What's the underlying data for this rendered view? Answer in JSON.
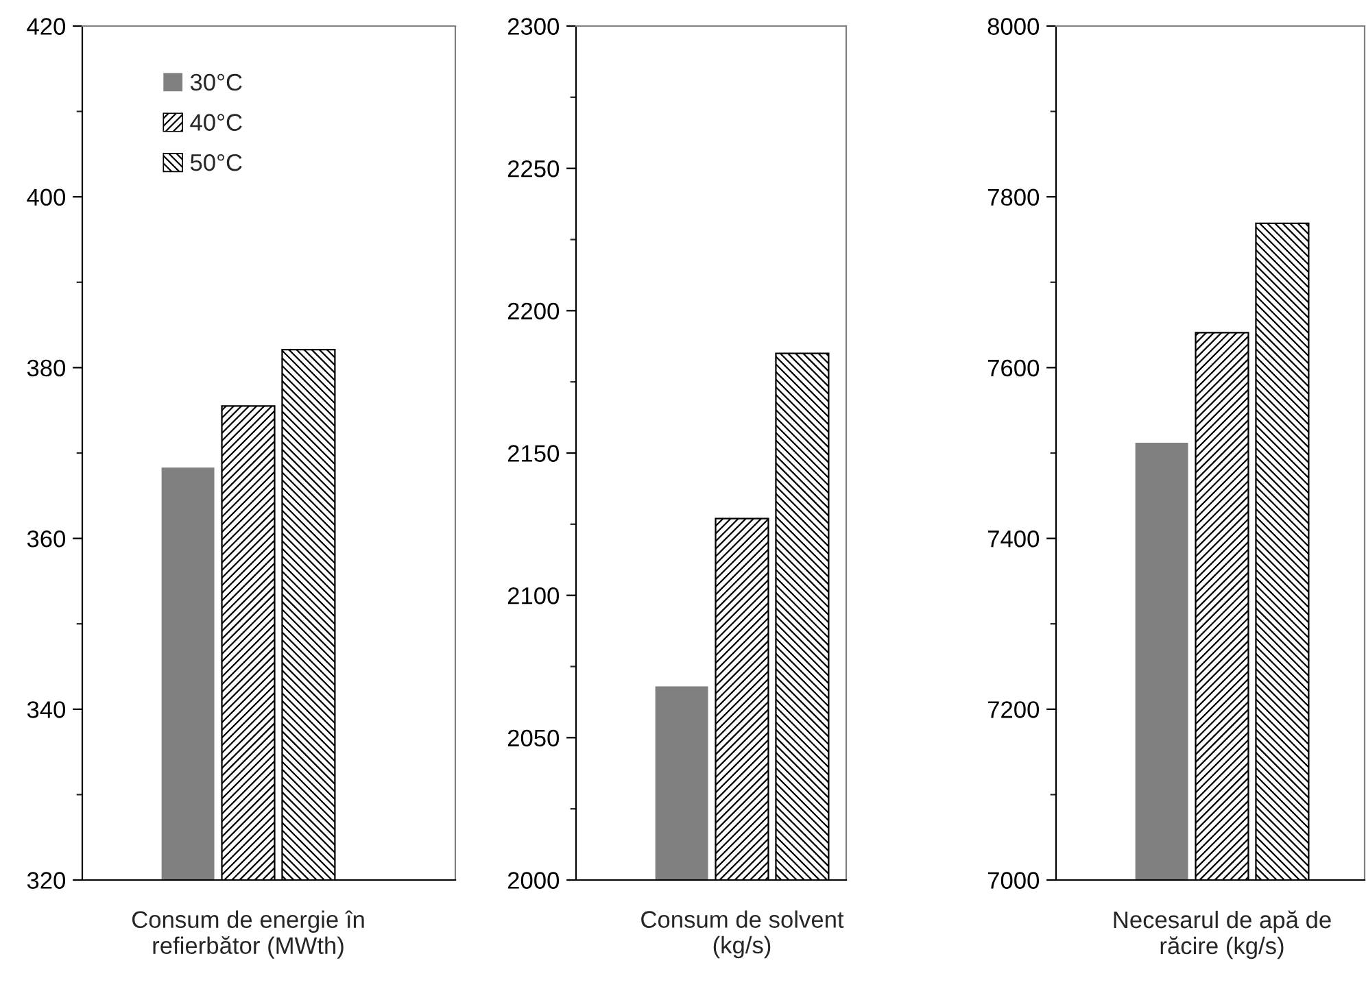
{
  "chart_data": [
    {
      "type": "bar",
      "categories": [
        "Consum de energie în\nrefierbător (MWth)"
      ],
      "ylim": [
        320,
        420
      ],
      "yticks": [
        320,
        340,
        360,
        380,
        400,
        420
      ],
      "legend": "top left",
      "grid": false,
      "series": [
        {
          "name": "30°C",
          "color": "#808080",
          "values": [
            368.3
          ]
        },
        {
          "name": "40°C",
          "color": "#000000",
          "values": [
            375.5
          ]
        },
        {
          "name": "50°C",
          "color": "#000000",
          "values": [
            382.1
          ]
        }
      ]
    },
    {
      "type": "bar",
      "categories": [
        "Consum de solvent\n(kg/s)"
      ],
      "ylim": [
        2000,
        2300
      ],
      "yticks": [
        2000,
        2050,
        2100,
        2150,
        2200,
        2250,
        2300
      ],
      "grid": false,
      "series": [
        {
          "color": "#808080",
          "values": [
            2068
          ]
        },
        {
          "color": "#000000",
          "values": [
            2127
          ]
        },
        {
          "color": "#000000",
          "values": [
            2185
          ]
        }
      ]
    },
    {
      "type": "bar",
      "categories": [
        "Necesarul de apă de\nrăcire (kg/s)"
      ],
      "ylim": [
        7000,
        8000
      ],
      "yticks": [
        7000,
        7200,
        7400,
        7600,
        7800,
        8000
      ],
      "grid": false,
      "series": [
        {
          "color": "#808080",
          "values": [
            7512
          ]
        },
        {
          "color": "#000000",
          "values": [
            7641
          ]
        },
        {
          "color": "#000000",
          "values": [
            7769
          ]
        }
      ]
    }
  ]
}
